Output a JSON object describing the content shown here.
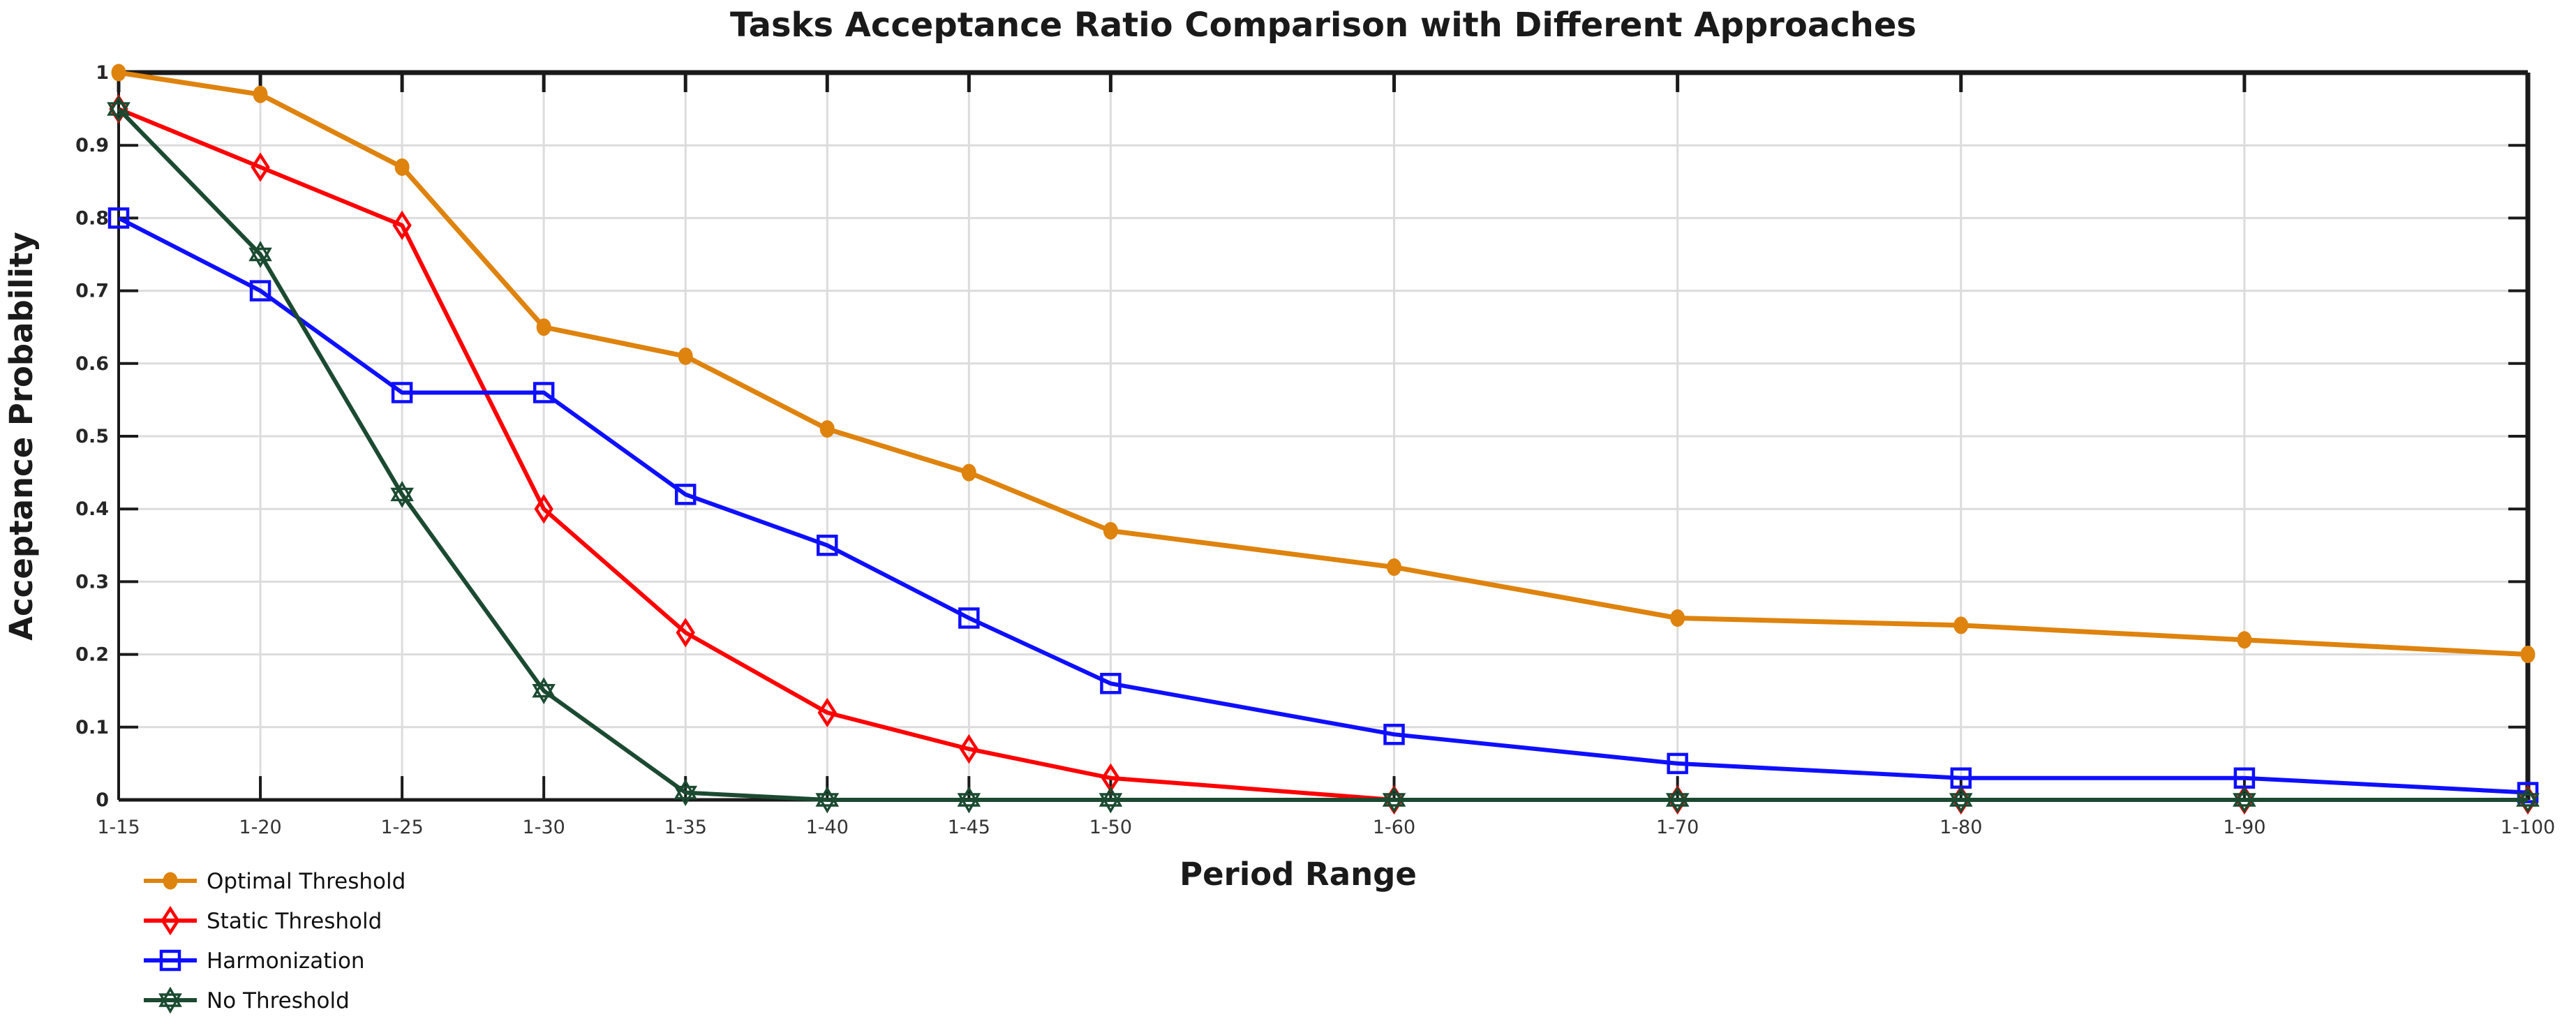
{
  "chart_data": {
    "type": "line",
    "title": "Tasks Acceptance Ratio Comparison with Different Approaches",
    "xlabel": "Period Range",
    "ylabel": "Acceptance Probability",
    "categories": [
      "1-15",
      "1-20",
      "1-25",
      "1-30",
      "1-35",
      "1-40",
      "1-45",
      "1-50",
      "1-60",
      "1-70",
      "1-80",
      "1-90",
      "1-100"
    ],
    "x_numeric": [
      15,
      20,
      25,
      30,
      35,
      40,
      45,
      50,
      60,
      70,
      80,
      90,
      100
    ],
    "ylim": [
      0,
      1
    ],
    "yticks": [
      0,
      0.1,
      0.2,
      0.3,
      0.4,
      0.5,
      0.6,
      0.7,
      0.8,
      0.9,
      1
    ],
    "ytick_labels": [
      "0",
      "0.1",
      "0.2",
      "0.3",
      "0.4",
      "0.5",
      "0.6",
      "0.7",
      "0.8",
      "0.9",
      "1"
    ],
    "grid": "on",
    "legend_position": "below-left",
    "series": [
      {
        "name": "Optimal Threshold",
        "color": "#DE830D",
        "marker": "filled-circle",
        "values": [
          1.0,
          0.97,
          0.87,
          0.65,
          0.61,
          0.51,
          0.45,
          0.37,
          0.32,
          0.25,
          0.24,
          0.22,
          0.2
        ]
      },
      {
        "name": "Static Threshold",
        "color": "#FE0000",
        "marker": "open-diamond",
        "values": [
          0.95,
          0.87,
          0.79,
          0.4,
          0.23,
          0.12,
          0.07,
          0.03,
          0.0,
          0.0,
          0.0,
          0.0,
          0.0
        ]
      },
      {
        "name": "Harmonization",
        "color": "#0F0FFF",
        "marker": "open-square",
        "values": [
          0.8,
          0.7,
          0.56,
          0.56,
          0.42,
          0.35,
          0.25,
          0.16,
          0.09,
          0.05,
          0.03,
          0.03,
          0.01
        ]
      },
      {
        "name": "No Threshold",
        "color": "#1B4A31",
        "marker": "hexagram",
        "values": [
          0.95,
          0.75,
          0.42,
          0.15,
          0.01,
          0.0,
          0.0,
          0.0,
          0.0,
          0.0,
          0.0,
          0.0,
          0.0
        ]
      }
    ],
    "colors": {
      "background": "#FFFFFF",
      "grid": "#DCDCDC",
      "axis": "#1A1A1A"
    }
  }
}
